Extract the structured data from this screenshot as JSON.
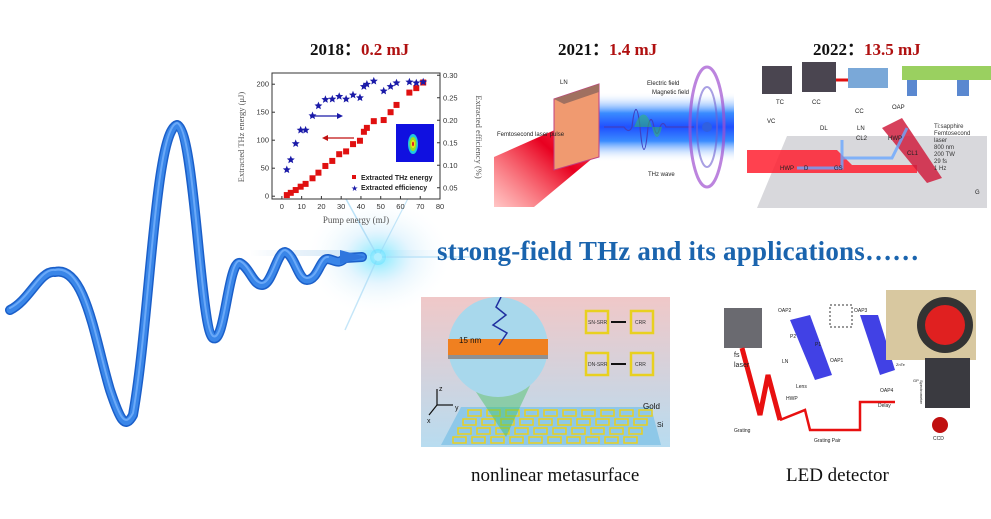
{
  "milestones": [
    {
      "year_label": "2018：",
      "energy": "0.2 mJ"
    },
    {
      "year_label": "2021：",
      "energy": "1.4 mJ"
    },
    {
      "year_label": "2022：",
      "energy": "13.5 mJ"
    }
  ],
  "headline": "strong-field THz and its applications……",
  "captions": {
    "metasurface": "nonlinear metasurface",
    "detector": "LED detector"
  },
  "colors": {
    "headline": "#1a64ae",
    "energy_value": "#b01010",
    "wave": "#3a86e8",
    "energy_series": "#e01010",
    "efficiency_series": "#1a1aa8"
  },
  "chart_data": {
    "type": "scatter",
    "xlabel": "Pump energy (mJ)",
    "ylabel": "Extracted THz energy (μJ)",
    "y2label": "Extracted efficiency (%)",
    "xlim": [
      -5,
      80
    ],
    "ylim": [
      -5,
      220
    ],
    "y2lim": [
      0.025,
      0.305
    ],
    "xticks": [
      "0",
      "10",
      "20",
      "30",
      "40",
      "50",
      "60",
      "70",
      "80"
    ],
    "yticks": [
      "0",
      "50",
      "100",
      "150",
      "200"
    ],
    "y2ticks": [
      "0.05",
      "0.10",
      "0.15",
      "0.20",
      "0.25",
      "0.30"
    ],
    "grid": false,
    "legend_position": "bottom-right",
    "series": [
      {
        "name": "Extracted THz energy",
        "axis": "left",
        "marker": "square",
        "x": [
          2.5,
          4.5,
          7,
          9.5,
          12,
          15.5,
          18.5,
          22,
          25.5,
          29,
          32.5,
          36,
          39.5,
          41.5,
          43,
          46.5,
          51.5,
          55,
          58,
          64.5,
          68,
          71.5
        ],
        "y": [
          2,
          6,
          11,
          17,
          22,
          32,
          42,
          54,
          63,
          75,
          80,
          93,
          99,
          115,
          122,
          134,
          136,
          150,
          163,
          185,
          193,
          203
        ]
      },
      {
        "name": "Extracted efficiency",
        "axis": "right",
        "marker": "star",
        "x": [
          2.5,
          4.5,
          7,
          9.5,
          12,
          15.5,
          18.5,
          22,
          25.5,
          29,
          32.5,
          36,
          39.5,
          41.5,
          43,
          46.5,
          51.5,
          55,
          58,
          64.5,
          68,
          71.5
        ],
        "y": [
          0.09,
          0.112,
          0.148,
          0.178,
          0.178,
          0.21,
          0.232,
          0.246,
          0.247,
          0.253,
          0.247,
          0.256,
          0.25,
          0.275,
          0.28,
          0.287,
          0.265,
          0.275,
          0.283,
          0.285,
          0.283,
          0.285
        ]
      }
    ],
    "annotations": [
      "arrow-left-to-energy-axis",
      "arrow-right-to-efficiency-axis"
    ]
  },
  "diagram_2021": {
    "labels": {
      "ln": "LN",
      "laser": "Femtosecond laser pulse",
      "electric": "Electric field",
      "magnetic": "Magnetic field",
      "thz": "THz wave"
    }
  },
  "diagram_2022": {
    "labels": {
      "tc": "TC",
      "cc": "CC",
      "cc2": "CC",
      "oap": "OAP",
      "vc": "VC",
      "dl": "DL",
      "ln": "LN",
      "cl2": "CL2",
      "hwp": "HWP",
      "hwp2": "HWP",
      "d": "D",
      "gs": "GS",
      "cl1": "CL1",
      "g": "G"
    },
    "specs": [
      "Ti:sapphire",
      "Femtosecond",
      "laser",
      "800 nm",
      "200 TW",
      "29 fs",
      "1 Hz"
    ]
  },
  "diagram_metasurface": {
    "labels": {
      "gap": "15 nm",
      "sn": "SN-SRR",
      "dn": "DN-SRR",
      "crr1": "CRR",
      "crr2": "CRR",
      "gold": "Gold",
      "si": "Si",
      "z": "z",
      "y": "y",
      "x": "x"
    }
  },
  "diagram_detector": {
    "labels": {
      "oap1": "OAP1",
      "oap2": "OAP2",
      "oap3": "OAP3",
      "oap4": "OAP4",
      "p1": "P1",
      "p2": "P2",
      "ln": "LN",
      "fs": "fs",
      "laser": "laser",
      "lens": "Lens",
      "hwp": "HWP",
      "delay": "Delay",
      "grating": "Grating",
      "grating_pair": "Grating Pair",
      "ccd": "CCD",
      "znte": "ZnTe",
      "gp": "GP",
      "spectrometer": "Spectrometer"
    }
  }
}
